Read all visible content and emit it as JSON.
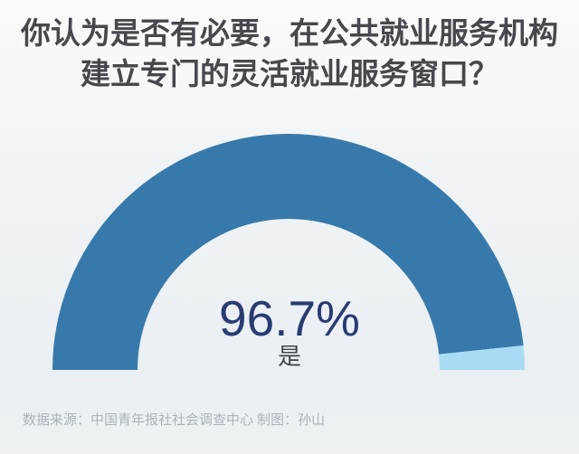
{
  "title": {
    "line1": "你认为是否有必要，在公共就业服务机构",
    "line2": "建立专门的灵活就业服务窗口？"
  },
  "gauge_center": {
    "percent": "96.7%",
    "answer": "是"
  },
  "footer": {
    "credit": "数据来源：中国青年报社社会调查中心 制图：孙山"
  },
  "colors": {
    "primary_blue": "#3779ab",
    "light_blue": "#a9dcf4",
    "percent_text": "#283b72",
    "title_text": "#45494d",
    "answer_text": "#3f4449",
    "footer_text": "#abb3b9",
    "bg_top": "#fafbfb",
    "bg_bottom": "#e9eff3"
  },
  "chart_data": {
    "type": "pie",
    "variant": "half-donut-gauge",
    "title": "你认为是否有必要，在公共就业服务机构建立专门的灵活就业服务窗口？",
    "segments": [
      {
        "label": "是",
        "value": 96.7,
        "color": "#3779ab"
      },
      {
        "label": "",
        "value": 3.3,
        "color": "#a9dcf4"
      }
    ],
    "center_labels": [
      "96.7%",
      "是"
    ],
    "start_angle_deg": 180,
    "end_angle_deg": 0,
    "value_total": 100,
    "legend": "none",
    "source_credit": "数据来源：中国青年报社社会调查中心 制图：孙山"
  }
}
